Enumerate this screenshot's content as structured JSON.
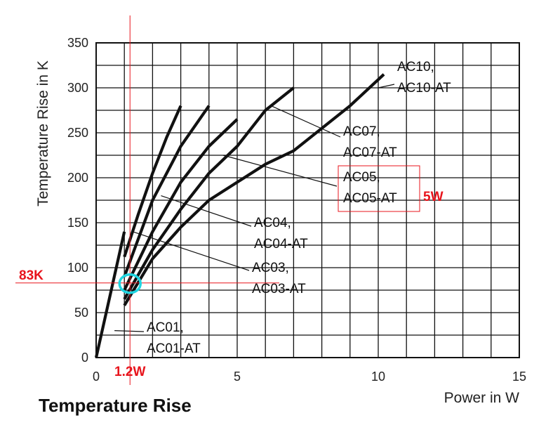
{
  "chart_data": {
    "type": "line",
    "title": "Temperature Rise",
    "xlabel": "Power in W",
    "ylabel": "Temperature Rise in K",
    "xlim": [
      0,
      15
    ],
    "ylim": [
      0,
      350
    ],
    "xticks": [
      0,
      5,
      10,
      15
    ],
    "yticks": [
      0,
      50,
      100,
      150,
      200,
      250,
      300,
      350
    ],
    "grid": true,
    "series": [
      {
        "name": "AC01, AC01-AT",
        "x": [
          0,
          0.5,
          1.0
        ],
        "y": [
          0,
          70,
          140
        ]
      },
      {
        "name": "AC03, AC03-AT",
        "x": [
          1.0,
          1.5,
          2.0,
          2.5,
          3.0
        ],
        "y": [
          112,
          160,
          205,
          245,
          280
        ]
      },
      {
        "name": "AC04, AC04-AT",
        "x": [
          1.0,
          2.0,
          3.0,
          4.0
        ],
        "y": [
          90,
          175,
          235,
          280
        ]
      },
      {
        "name": "AC05, AC05-AT",
        "x": [
          1.0,
          2.0,
          3.0,
          4.0,
          5.0
        ],
        "y": [
          75,
          140,
          195,
          235,
          265
        ]
      },
      {
        "name": "AC07, AC07-AT",
        "x": [
          1.0,
          2.0,
          3.0,
          4.0,
          5.0,
          6.0,
          7.0
        ],
        "y": [
          65,
          120,
          165,
          205,
          235,
          275,
          300
        ]
      },
      {
        "name": "AC10, AC10-AT",
        "x": [
          1.0,
          2.0,
          3.0,
          4.0,
          5.0,
          6.0,
          7.0,
          8.0,
          9.0,
          10.2
        ],
        "y": [
          58,
          110,
          145,
          175,
          195,
          215,
          230,
          255,
          280,
          315
        ]
      }
    ],
    "annotations": {
      "marker_x_label": "1.2W",
      "marker_y_label": "83K",
      "marker_x_value": 1.2,
      "marker_y_value": 83,
      "highlight_label": "5W",
      "highlight_series": "AC05, AC05-AT"
    },
    "colors": {
      "series": "#111111",
      "grid": "#111111",
      "marker_line": "#e8141c",
      "marker_circle": "#1fd4e0",
      "highlight_box": "#e8141c"
    }
  }
}
